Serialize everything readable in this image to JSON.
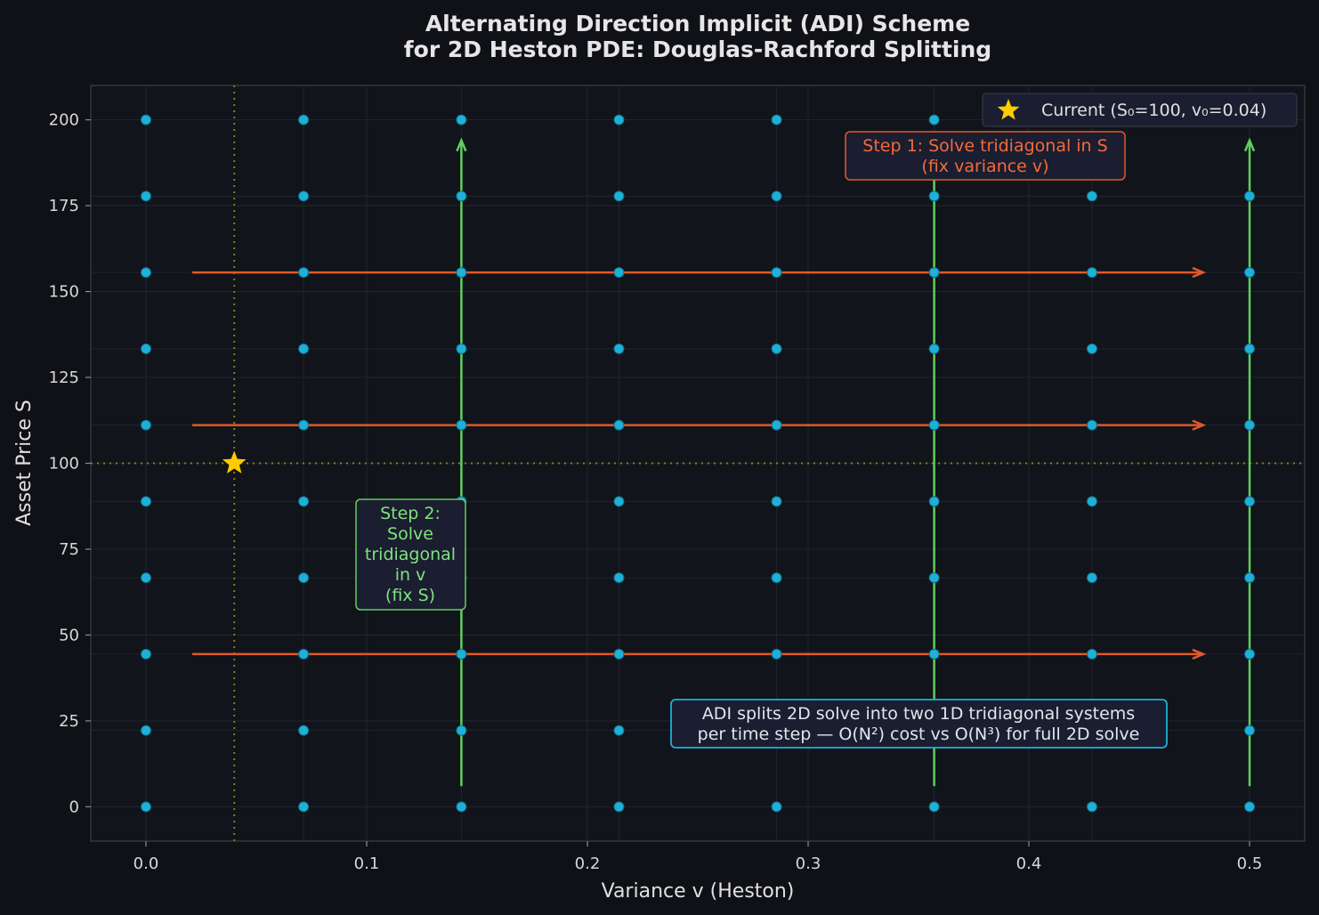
{
  "chart_data": {
    "type": "scatter",
    "title_lines": [
      "Alternating Direction Implicit (ADI) Scheme",
      "for 2D Heston PDE: Douglas-Rachford Splitting"
    ],
    "xlabel": "Variance v (Heston)",
    "ylabel": "Asset Price S",
    "xlim": [
      -0.025,
      0.525
    ],
    "ylim": [
      -10,
      210
    ],
    "xticks": [
      0.0,
      0.1,
      0.2,
      0.3,
      0.4,
      0.5
    ],
    "xtick_labels": [
      "0.0",
      "0.1",
      "0.2",
      "0.3",
      "0.4",
      "0.5"
    ],
    "yticks": [
      0,
      25,
      50,
      75,
      100,
      125,
      150,
      175,
      200
    ],
    "ytick_labels": [
      "0",
      "25",
      "50",
      "75",
      "100",
      "125",
      "150",
      "175",
      "200"
    ],
    "grid": true,
    "grid_v": [
      0,
      0.0714,
      0.1429,
      0.2143,
      0.2857,
      0.3571,
      0.4286,
      0.5
    ],
    "grid_s": [
      0,
      22.22,
      44.44,
      66.67,
      88.89,
      111.11,
      133.33,
      155.56,
      177.78,
      200
    ],
    "current_point": {
      "v": 0.04,
      "S": 100,
      "label": "Current (S₀=100, v₀=0.04)"
    },
    "legend_position": "top-right",
    "s_sweeps": {
      "S_levels": [
        44.44,
        111.11,
        155.56
      ],
      "v_from": 0.021,
      "v_to": 0.479
    },
    "v_sweeps": {
      "v_levels": [
        0.1429,
        0.3571,
        0.5
      ],
      "S_from": 6,
      "S_to": 194
    },
    "annotations": {
      "step1": [
        "Step 1: Solve tridiagonal in S",
        "(fix variance v)"
      ],
      "step2": [
        "Step 2:",
        "Solve",
        "tridiagonal",
        "in v",
        "(fix S)"
      ],
      "note": [
        "ADI splits 2D solve into two 1D tridiagonal systems",
        "per time step — O(N²) cost vs O(N³) for full 2D solve"
      ]
    },
    "colors": {
      "background": "#0f1116",
      "grid_nodes": "#1fb0d8",
      "s_sweep": "#e0592a",
      "v_sweep": "#5fcf5f",
      "current": "#ffcc00",
      "note_border": "#1fb0d8"
    }
  }
}
